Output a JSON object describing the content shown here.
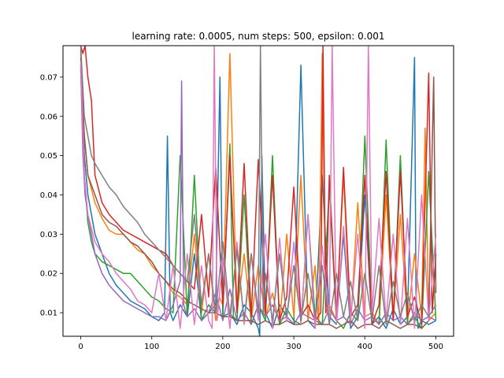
{
  "chart_data": {
    "type": "line",
    "title": "learning rate: 0.0005, num steps: 500, epsilon: 0.001",
    "xlabel": "",
    "ylabel": "",
    "xlim": [
      -25,
      525
    ],
    "ylim": [
      0.004,
      0.078
    ],
    "xticks": [
      0,
      100,
      200,
      300,
      400,
      500
    ],
    "yticks": [
      0.01,
      0.02,
      0.03,
      0.04,
      0.05,
      0.06,
      0.07
    ],
    "xtick_labels": [
      "0",
      "100",
      "200",
      "300",
      "400",
      "500"
    ],
    "ytick_labels": [
      "0.01",
      "0.02",
      "0.03",
      "0.04",
      "0.05",
      "0.06",
      "0.07"
    ],
    "grid": false,
    "legend": "none",
    "series": [
      {
        "color": "#1f77b4",
        "x": [
          0,
          5,
          10,
          20,
          30,
          40,
          50,
          60,
          70,
          80,
          90,
          100,
          110,
          118,
          122,
          126,
          130,
          140,
          150,
          160,
          170,
          180,
          190,
          196,
          200,
          210,
          220,
          230,
          240,
          250,
          252,
          255,
          260,
          270,
          280,
          290,
          300,
          310,
          320,
          330,
          340,
          350,
          360,
          370,
          380,
          390,
          400,
          410,
          420,
          430,
          440,
          450,
          460,
          470,
          472,
          475,
          480,
          490,
          500
        ],
        "y": [
          0.077,
          0.05,
          0.04,
          0.03,
          0.025,
          0.02,
          0.017,
          0.015,
          0.013,
          0.012,
          0.011,
          0.009,
          0.008,
          0.01,
          0.055,
          0.01,
          0.008,
          0.012,
          0.009,
          0.025,
          0.008,
          0.01,
          0.012,
          0.07,
          0.009,
          0.01,
          0.007,
          0.012,
          0.01,
          0.006,
          0.004,
          0.05,
          0.01,
          0.006,
          0.012,
          0.009,
          0.007,
          0.073,
          0.008,
          0.006,
          0.045,
          0.009,
          0.007,
          0.03,
          0.006,
          0.009,
          0.04,
          0.007,
          0.009,
          0.006,
          0.011,
          0.007,
          0.009,
          0.075,
          0.015,
          0.006,
          0.008,
          0.007,
          0.008
        ]
      },
      {
        "color": "#ff7f0e",
        "x": [
          0,
          5,
          10,
          20,
          30,
          40,
          50,
          60,
          70,
          80,
          90,
          100,
          110,
          120,
          130,
          140,
          150,
          160,
          170,
          180,
          190,
          195,
          200,
          210,
          220,
          230,
          240,
          250,
          260,
          270,
          280,
          290,
          300,
          310,
          320,
          330,
          335,
          340,
          345,
          350,
          360,
          370,
          380,
          390,
          400,
          410,
          420,
          430,
          440,
          450,
          460,
          470,
          480,
          485,
          490,
          500
        ],
        "y": [
          0.076,
          0.055,
          0.045,
          0.038,
          0.034,
          0.031,
          0.03,
          0.03,
          0.028,
          0.026,
          0.025,
          0.022,
          0.02,
          0.018,
          0.015,
          0.014,
          0.012,
          0.03,
          0.01,
          0.025,
          0.008,
          0.014,
          0.012,
          0.076,
          0.01,
          0.025,
          0.008,
          0.022,
          0.009,
          0.015,
          0.007,
          0.03,
          0.009,
          0.045,
          0.008,
          0.022,
          0.007,
          0.076,
          0.01,
          0.012,
          0.008,
          0.045,
          0.007,
          0.038,
          0.009,
          0.01,
          0.007,
          0.04,
          0.008,
          0.035,
          0.007,
          0.025,
          0.009,
          0.057,
          0.008,
          0.01
        ]
      },
      {
        "color": "#2ca02c",
        "x": [
          0,
          5,
          10,
          15,
          20,
          30,
          40,
          50,
          60,
          70,
          80,
          90,
          100,
          110,
          120,
          130,
          140,
          150,
          160,
          170,
          180,
          190,
          200,
          210,
          215,
          220,
          230,
          240,
          250,
          260,
          270,
          280,
          290,
          300,
          310,
          320,
          330,
          340,
          350,
          360,
          370,
          380,
          390,
          400,
          410,
          420,
          430,
          440,
          450,
          460,
          470,
          480,
          490,
          500
        ],
        "y": [
          0.072,
          0.045,
          0.033,
          0.028,
          0.025,
          0.023,
          0.022,
          0.021,
          0.02,
          0.02,
          0.018,
          0.016,
          0.014,
          0.013,
          0.011,
          0.01,
          0.05,
          0.009,
          0.045,
          0.008,
          0.012,
          0.01,
          0.009,
          0.053,
          0.009,
          0.008,
          0.04,
          0.007,
          0.012,
          0.008,
          0.05,
          0.007,
          0.011,
          0.008,
          0.007,
          0.035,
          0.009,
          0.007,
          0.042,
          0.008,
          0.006,
          0.01,
          0.008,
          0.055,
          0.009,
          0.007,
          0.054,
          0.008,
          0.05,
          0.007,
          0.009,
          0.006,
          0.046,
          0.008
        ]
      },
      {
        "color": "#d62728",
        "x": [
          0,
          3,
          6,
          10,
          15,
          20,
          30,
          40,
          50,
          60,
          70,
          80,
          90,
          100,
          110,
          120,
          130,
          140,
          150,
          160,
          170,
          180,
          190,
          200,
          210,
          220,
          230,
          240,
          250,
          260,
          270,
          280,
          290,
          300,
          310,
          320,
          330,
          338,
          341,
          345,
          350,
          360,
          370,
          380,
          390,
          400,
          410,
          420,
          430,
          440,
          450,
          460,
          470,
          480,
          490,
          495,
          500
        ],
        "y": [
          0.078,
          0.076,
          0.078,
          0.07,
          0.064,
          0.045,
          0.038,
          0.035,
          0.033,
          0.031,
          0.03,
          0.029,
          0.028,
          0.027,
          0.026,
          0.025,
          0.022,
          0.02,
          0.018,
          0.016,
          0.035,
          0.014,
          0.047,
          0.012,
          0.05,
          0.01,
          0.048,
          0.009,
          0.049,
          0.01,
          0.045,
          0.008,
          0.014,
          0.042,
          0.009,
          0.012,
          0.008,
          0.01,
          0.078,
          0.01,
          0.045,
          0.008,
          0.047,
          0.009,
          0.012,
          0.045,
          0.007,
          0.012,
          0.046,
          0.008,
          0.046,
          0.009,
          0.014,
          0.007,
          0.071,
          0.01,
          0.025
        ]
      },
      {
        "color": "#9467bd",
        "x": [
          0,
          3,
          6,
          10,
          15,
          20,
          30,
          40,
          50,
          60,
          70,
          80,
          90,
          100,
          110,
          120,
          130,
          140,
          142,
          145,
          150,
          160,
          170,
          180,
          190,
          200,
          210,
          220,
          230,
          240,
          250,
          260,
          270,
          280,
          290,
          300,
          310,
          320,
          330,
          340,
          350,
          360,
          370,
          380,
          390,
          400,
          410,
          420,
          430,
          440,
          450,
          460,
          470,
          480,
          490,
          500
        ],
        "y": [
          0.073,
          0.05,
          0.04,
          0.035,
          0.03,
          0.025,
          0.02,
          0.017,
          0.015,
          0.013,
          0.012,
          0.011,
          0.01,
          0.009,
          0.009,
          0.008,
          0.012,
          0.018,
          0.069,
          0.012,
          0.009,
          0.011,
          0.008,
          0.01,
          0.015,
          0.008,
          0.016,
          0.008,
          0.01,
          0.007,
          0.012,
          0.009,
          0.012,
          0.008,
          0.009,
          0.007,
          0.01,
          0.009,
          0.008,
          0.007,
          0.011,
          0.008,
          0.009,
          0.007,
          0.011,
          0.008,
          0.009,
          0.007,
          0.01,
          0.008,
          0.009,
          0.007,
          0.01,
          0.008,
          0.009,
          0.008
        ]
      },
      {
        "color": "#8c564b",
        "x": [
          0,
          5,
          10,
          20,
          30,
          40,
          50,
          60,
          70,
          80,
          90,
          100,
          110,
          120,
          130,
          140,
          150,
          160,
          170,
          180,
          190,
          200,
          210,
          220,
          230,
          240,
          250,
          260,
          270,
          280,
          290,
          300,
          310,
          320,
          330,
          340,
          350,
          360,
          370,
          380,
          390,
          400,
          410,
          420,
          430,
          440,
          450,
          460,
          470,
          480,
          490,
          497,
          500
        ],
        "y": [
          0.075,
          0.055,
          0.045,
          0.04,
          0.035,
          0.033,
          0.032,
          0.03,
          0.028,
          0.027,
          0.025,
          0.023,
          0.02,
          0.018,
          0.016,
          0.015,
          0.013,
          0.012,
          0.011,
          0.01,
          0.01,
          0.009,
          0.009,
          0.008,
          0.008,
          0.008,
          0.007,
          0.008,
          0.007,
          0.007,
          0.008,
          0.007,
          0.007,
          0.008,
          0.007,
          0.007,
          0.007,
          0.006,
          0.007,
          0.008,
          0.006,
          0.007,
          0.007,
          0.006,
          0.008,
          0.007,
          0.006,
          0.007,
          0.007,
          0.006,
          0.008,
          0.07,
          0.015
        ]
      },
      {
        "color": "#e377c2",
        "x": [
          0,
          5,
          10,
          20,
          30,
          40,
          50,
          60,
          70,
          80,
          90,
          100,
          110,
          120,
          130,
          140,
          150,
          160,
          170,
          180,
          185,
          188,
          192,
          200,
          210,
          220,
          230,
          240,
          250,
          260,
          270,
          280,
          290,
          300,
          310,
          320,
          330,
          340,
          350,
          354,
          360,
          370,
          380,
          390,
          400,
          405,
          410,
          420,
          430,
          440,
          450,
          460,
          470,
          480,
          490,
          500
        ],
        "y": [
          0.074,
          0.045,
          0.035,
          0.028,
          0.025,
          0.023,
          0.02,
          0.018,
          0.016,
          0.013,
          0.012,
          0.01,
          0.02,
          0.008,
          0.022,
          0.006,
          0.025,
          0.007,
          0.022,
          0.008,
          0.006,
          0.078,
          0.008,
          0.024,
          0.006,
          0.028,
          0.007,
          0.025,
          0.008,
          0.03,
          0.006,
          0.029,
          0.008,
          0.028,
          0.007,
          0.035,
          0.006,
          0.027,
          0.008,
          0.078,
          0.007,
          0.032,
          0.008,
          0.03,
          0.006,
          0.078,
          0.01,
          0.034,
          0.008,
          0.03,
          0.007,
          0.034,
          0.006,
          0.04,
          0.008,
          0.03
        ]
      },
      {
        "color": "#7f7f7f",
        "x": [
          0,
          5,
          10,
          15,
          20,
          30,
          40,
          50,
          60,
          70,
          80,
          90,
          100,
          110,
          120,
          130,
          140,
          150,
          160,
          170,
          180,
          190,
          200,
          210,
          220,
          230,
          240,
          250,
          253,
          257,
          260,
          270,
          280,
          290,
          300,
          310,
          320,
          330,
          340,
          350,
          360,
          370,
          380,
          390,
          400,
          410,
          420,
          430,
          440,
          450,
          460,
          470,
          480,
          490,
          500
        ],
        "y": [
          0.078,
          0.06,
          0.055,
          0.05,
          0.048,
          0.045,
          0.042,
          0.04,
          0.037,
          0.035,
          0.033,
          0.03,
          0.028,
          0.026,
          0.024,
          0.022,
          0.02,
          0.018,
          0.035,
          0.012,
          0.025,
          0.01,
          0.028,
          0.009,
          0.026,
          0.008,
          0.025,
          0.01,
          0.078,
          0.01,
          0.02,
          0.008,
          0.025,
          0.009,
          0.022,
          0.008,
          0.02,
          0.009,
          0.022,
          0.007,
          0.02,
          0.009,
          0.018,
          0.008,
          0.02,
          0.008,
          0.022,
          0.007,
          0.018,
          0.009,
          0.015,
          0.008,
          0.012,
          0.009,
          0.012
        ]
      }
    ]
  }
}
